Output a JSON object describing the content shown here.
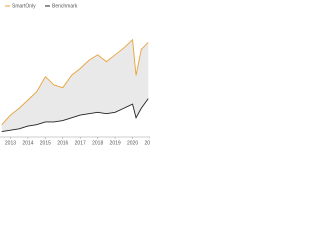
{
  "chart_data": {
    "type": "line",
    "xlim": [
      2012.4,
      2021
    ],
    "xticks": [
      2013,
      2014,
      2015,
      2016,
      2017,
      2018,
      2019,
      2020,
      2021
    ],
    "ylim": [
      0,
      100
    ],
    "fill_between": true,
    "series": [
      {
        "name": "SmartOnly",
        "color": "#e8a33c",
        "x": [
          2012.5,
          2013,
          2013.5,
          2014,
          2014.5,
          2015,
          2015.5,
          2016,
          2016.5,
          2017,
          2017.5,
          2018,
          2018.5,
          2019,
          2019.5,
          2020,
          2020.2,
          2020.5,
          2020.9
        ],
        "values": [
          9,
          16,
          21,
          27,
          33,
          44,
          38,
          36,
          45,
          50,
          56,
          60,
          55,
          60,
          65,
          71,
          45,
          64,
          69
        ]
      },
      {
        "name": "Benchmark",
        "color": "#222222",
        "x": [
          2012.5,
          2013,
          2013.5,
          2014,
          2014.5,
          2015,
          2015.5,
          2016,
          2016.5,
          2017,
          2017.5,
          2018,
          2018.5,
          2019,
          2019.5,
          2020,
          2020.2,
          2020.5,
          2020.9
        ],
        "values": [
          4,
          5,
          6,
          8,
          9,
          11,
          11,
          12,
          14,
          16,
          17,
          18,
          17,
          18,
          21,
          24,
          14,
          21,
          28
        ]
      }
    ]
  }
}
